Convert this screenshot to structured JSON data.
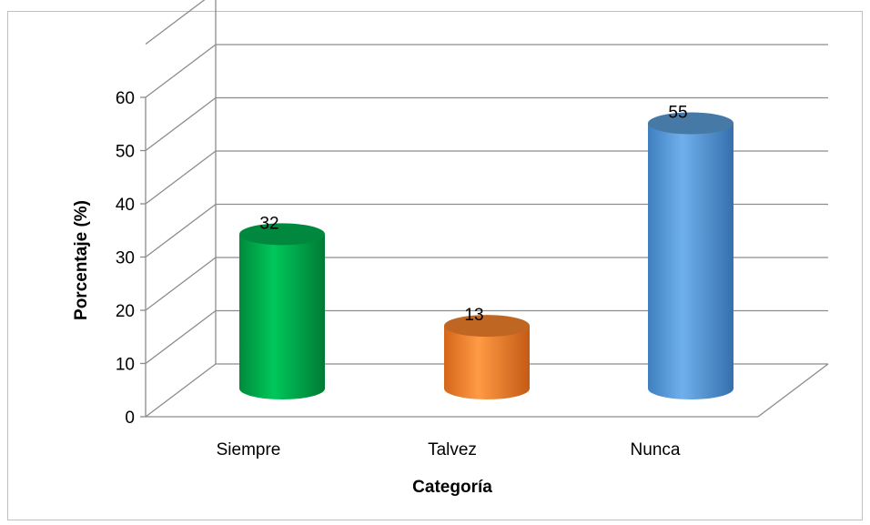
{
  "chart_data": {
    "type": "bar",
    "style": "3d-cylinder",
    "categories": [
      "Siempre",
      "Talvez",
      "Nunca"
    ],
    "values": [
      32,
      13,
      55
    ],
    "data_labels": [
      "32",
      "13",
      "55"
    ],
    "colors": [
      "#00b050",
      "#f5842b",
      "#5b9bd5"
    ],
    "xlabel": "Categoría",
    "ylabel": "Porcentaje (%)",
    "ylim": [
      0,
      60
    ],
    "yticks": [
      "0",
      "10",
      "20",
      "30",
      "40",
      "50",
      "60"
    ],
    "grid": true,
    "legend": "none"
  }
}
